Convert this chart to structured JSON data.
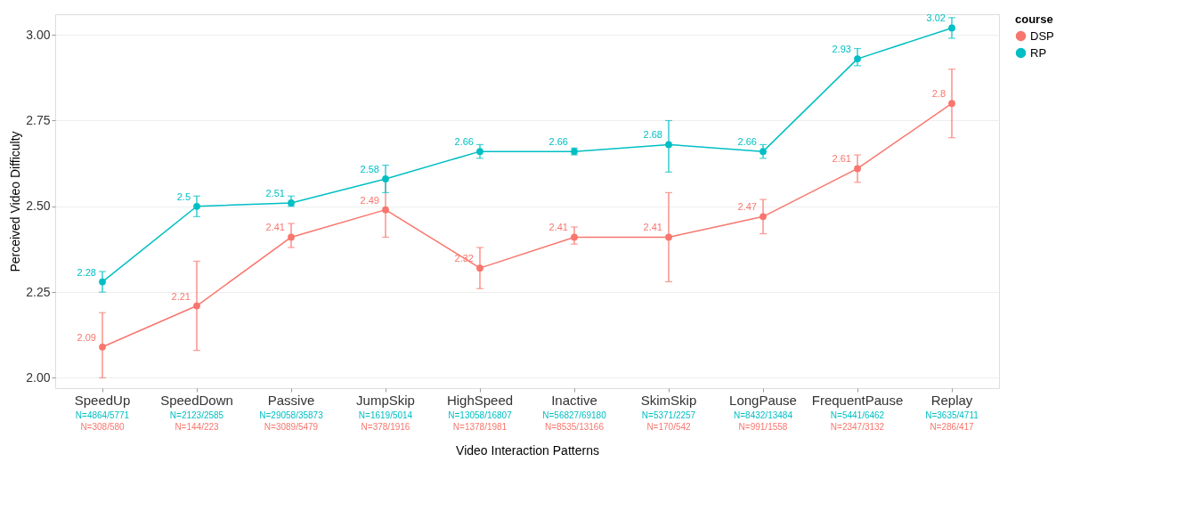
{
  "chart_data": {
    "type": "line",
    "xlabel": "Video Interaction Patterns",
    "ylabel": "Perceived Video Difficulty",
    "legend_title": "course",
    "categories": [
      "SpeedUp",
      "SpeedDown",
      "Passive",
      "JumpSkip",
      "HighSpeed",
      "Inactive",
      "SkimSkip",
      "LongPause",
      "FrequentPause",
      "Replay"
    ],
    "series": [
      {
        "name": "DSP",
        "color": "#f8766d",
        "values": [
          2.09,
          2.21,
          2.41,
          2.49,
          2.32,
          2.41,
          2.41,
          2.47,
          2.61,
          2.8
        ],
        "errors": [
          [
            2.0,
            2.19
          ],
          [
            2.08,
            2.34
          ],
          [
            2.38,
            2.45
          ],
          [
            2.41,
            2.58
          ],
          [
            2.26,
            2.38
          ],
          [
            2.39,
            2.44
          ],
          [
            2.28,
            2.54
          ],
          [
            2.42,
            2.52
          ],
          [
            2.57,
            2.65
          ],
          [
            2.7,
            2.9
          ]
        ]
      },
      {
        "name": "RP",
        "color": "#00bfc4",
        "values": [
          2.28,
          2.5,
          2.51,
          2.58,
          2.66,
          2.66,
          2.68,
          2.66,
          2.93,
          3.02
        ],
        "errors": [
          [
            2.25,
            2.31
          ],
          [
            2.47,
            2.53
          ],
          [
            2.5,
            2.53
          ],
          [
            2.54,
            2.62
          ],
          [
            2.64,
            2.68
          ],
          [
            2.65,
            2.67
          ],
          [
            2.6,
            2.75
          ],
          [
            2.64,
            2.68
          ],
          [
            2.91,
            2.96
          ],
          [
            2.99,
            3.05
          ]
        ]
      }
    ],
    "ylim": [
      1.97,
      3.06
    ],
    "yticks": [
      {
        "value": 2,
        "label": "2.00"
      },
      {
        "value": 2.25,
        "label": "2.25"
      },
      {
        "value": 2.5,
        "label": "2.50"
      },
      {
        "value": 2.75,
        "label": "2.75"
      },
      {
        "value": 3,
        "label": "3.00"
      }
    ],
    "grid": "y",
    "legend": "right",
    "marker": "circle",
    "line_style": "solid",
    "data_labels": true,
    "annotations": [
      "N=4864/5771",
      "N=2123/2585",
      "N=29058/35873",
      "N=1619/5014",
      "N=13058/16807",
      "N=56827/69180",
      "N=5371/2257",
      "N=8432/13484",
      "N=5441/6462",
      "N=3635/4711",
      "N=308/580",
      "N=144/223",
      "N=3089/5479",
      "N=378/1916",
      "N=1378/1981",
      "N=8535/13166",
      "N=170/542",
      "N=991/1558",
      "N=2347/3132",
      "N=286/417"
    ]
  }
}
